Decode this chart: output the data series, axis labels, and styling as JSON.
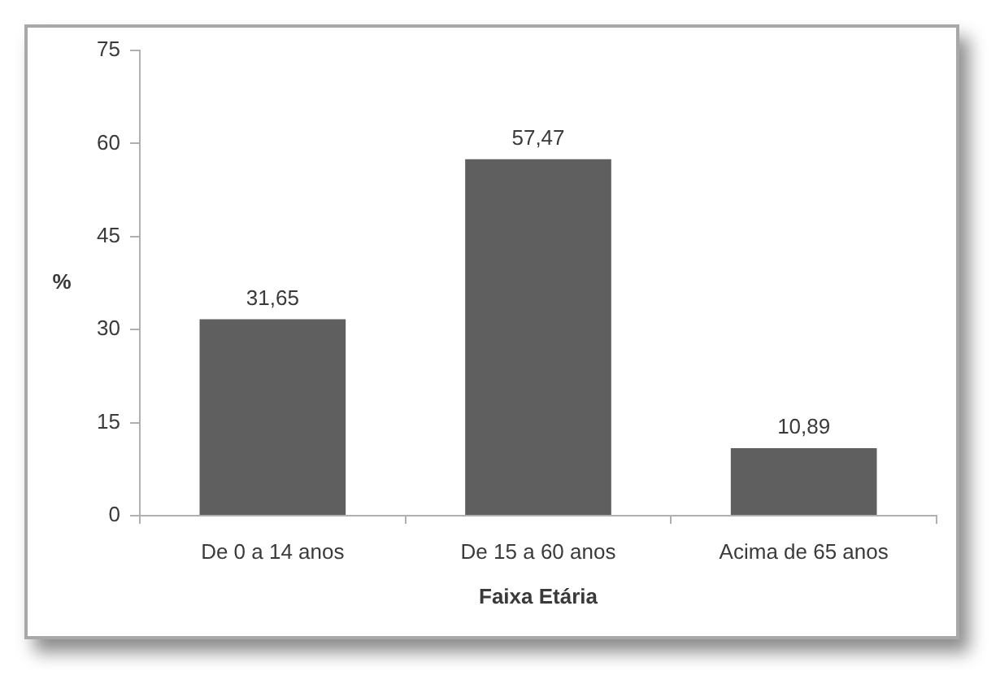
{
  "chart_data": {
    "type": "bar",
    "xlabel": "Faixa Etária",
    "ylabel": "%",
    "categories": [
      "De 0 a 14 anos",
      "De 15 a 60 anos",
      "Acima de 65 anos"
    ],
    "values": [
      31.65,
      57.47,
      10.89
    ],
    "color": "#5f5f5f",
    "value_labels": [
      "31,65",
      "57,47",
      "10,89"
    ],
    "ylim": [
      0,
      75
    ],
    "yticks": [
      0,
      15,
      30,
      45,
      60,
      75
    ],
    "grid": false,
    "legend": false
  }
}
